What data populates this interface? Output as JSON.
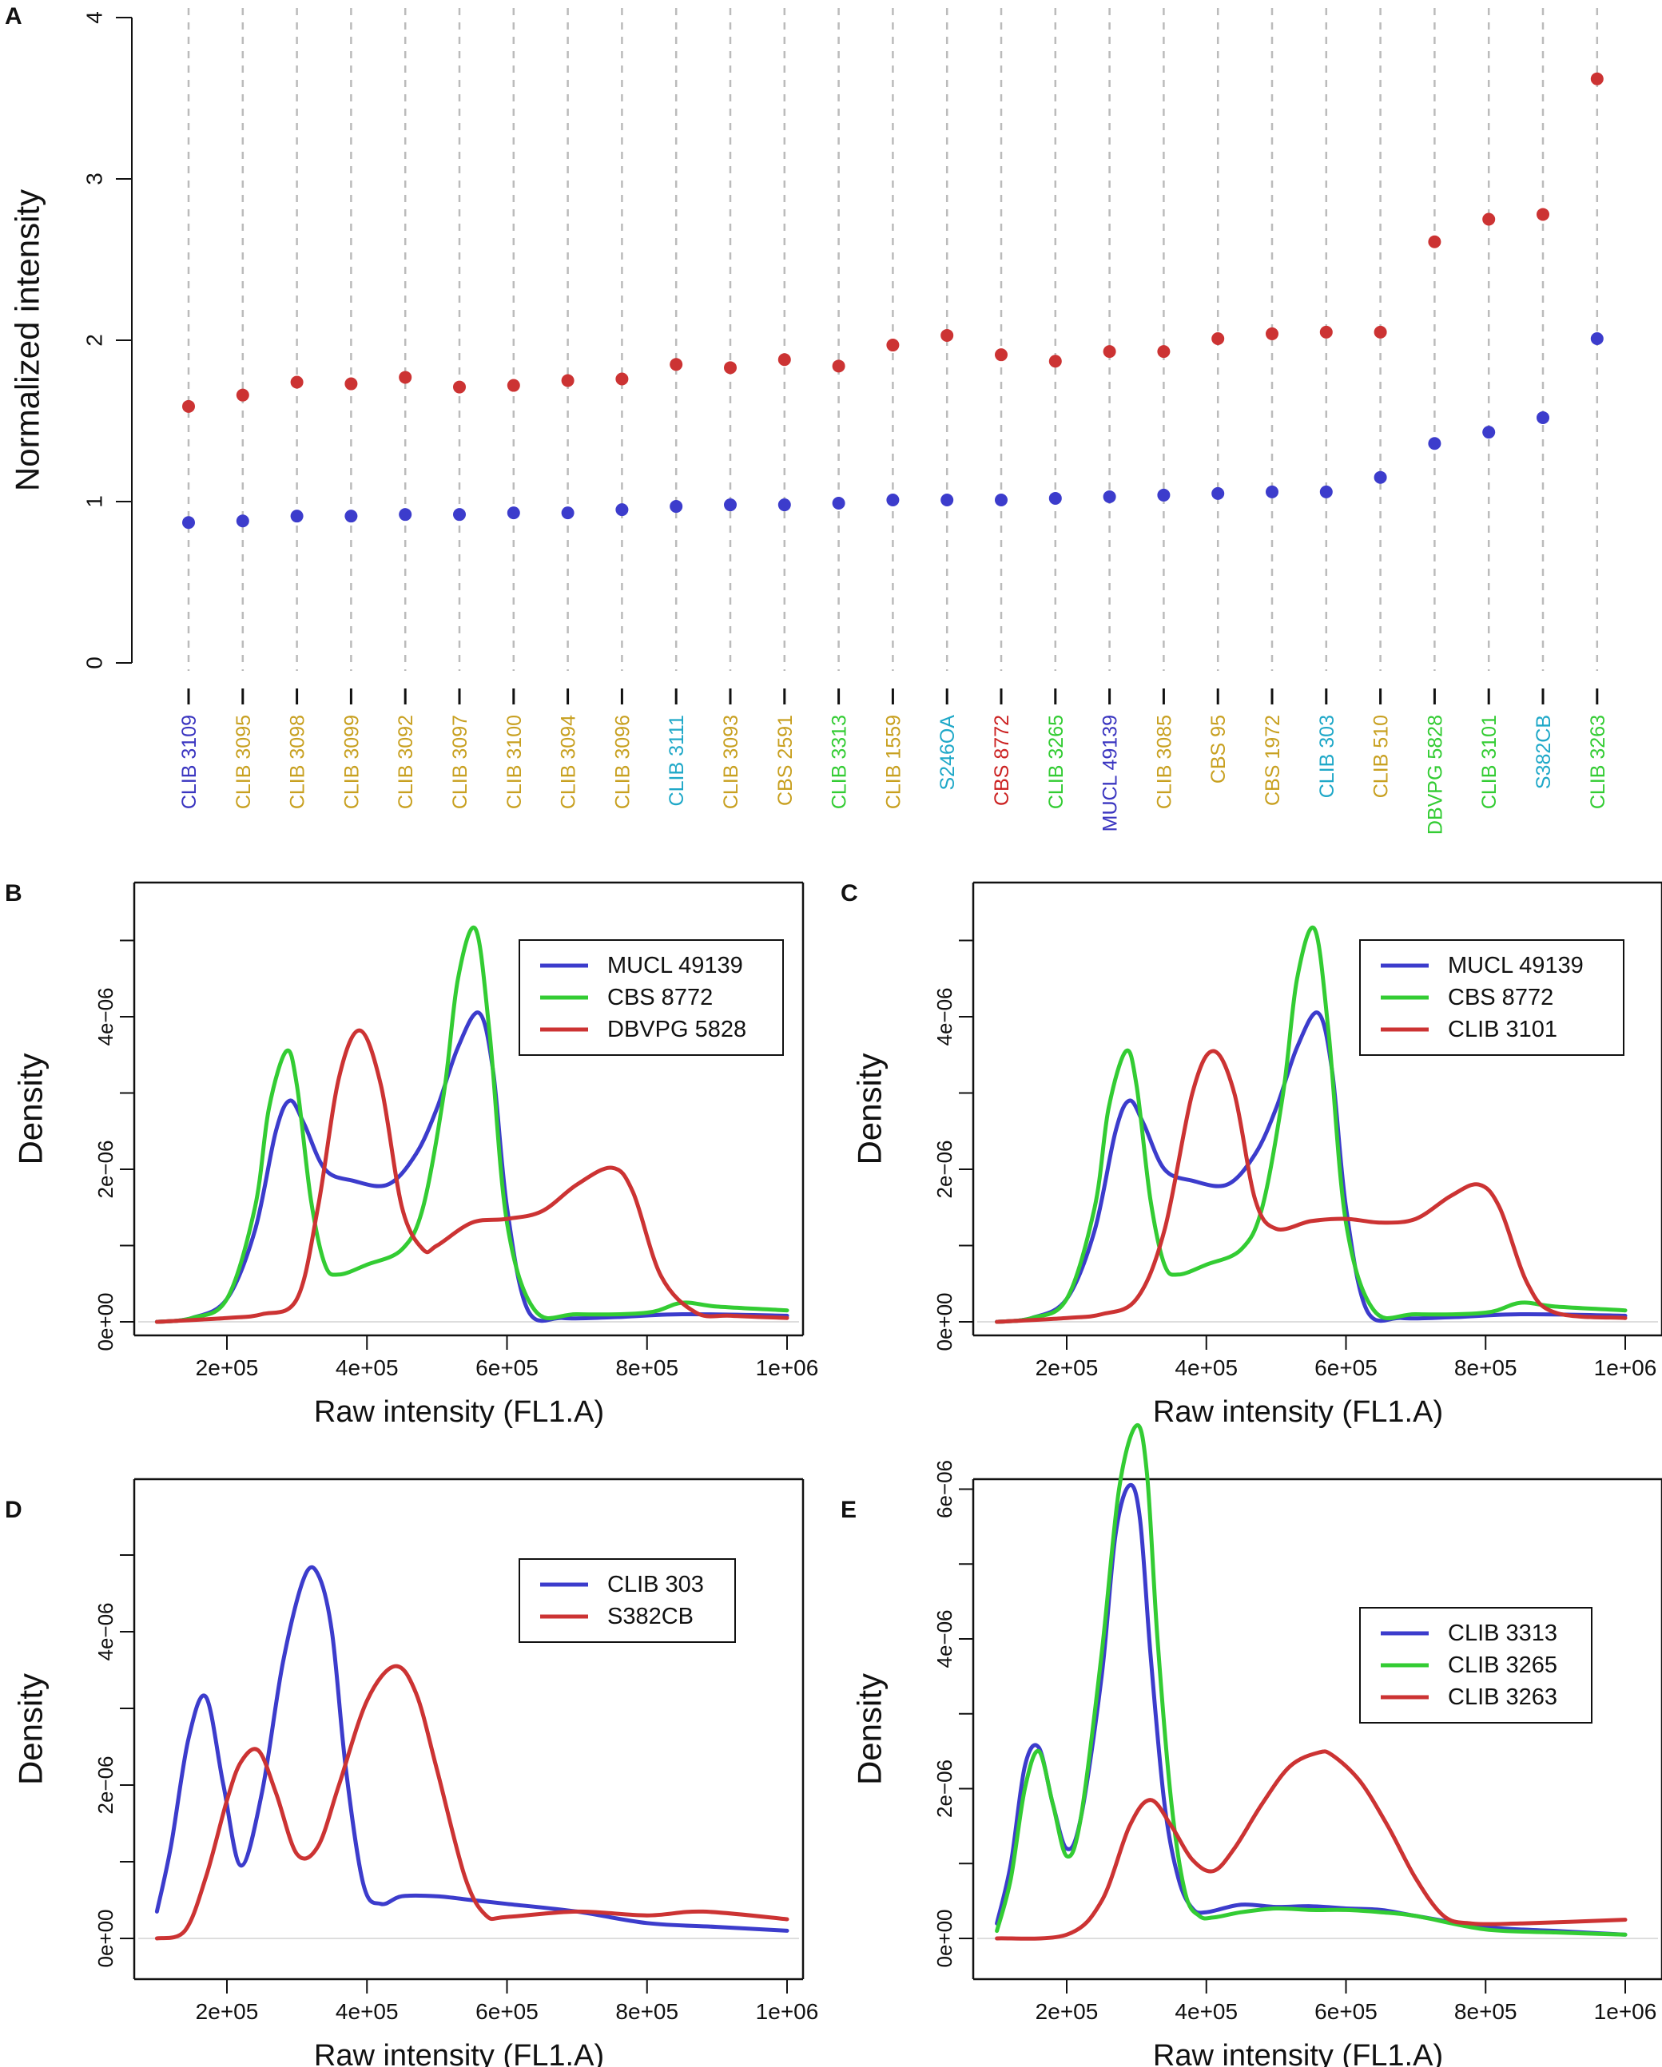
{
  "colors": {
    "red": "#cc3333",
    "blue": "#3c3ccc",
    "green": "#33cc33",
    "gold": "#c8a020",
    "cyan": "#1fa8c8",
    "purple": "#3a35c0",
    "crimson": "#cc2222",
    "grid": "#bbbbbb"
  },
  "chart_data": [
    {
      "panel": "A",
      "type": "scatter",
      "ylabel": "Normalized intensity",
      "ylim": [
        0,
        4
      ],
      "yticks": [
        "0",
        "1",
        "2",
        "3",
        "4"
      ],
      "categories": [
        "CLIB 3109",
        "CLIB 3095",
        "CLIB 3098",
        "CLIB 3099",
        "CLIB 3092",
        "CLIB 3097",
        "CLIB 3100",
        "CLIB 3094",
        "CLIB 3096",
        "CLIB 3111",
        "CLIB 3093",
        "CBS 2591",
        "CLIB 3313",
        "CLIB 1559",
        "S246OA",
        "CBS 8772",
        "CLIB 3265",
        "MUCL 49139",
        "CLIB 3085",
        "CBS 95",
        "CBS 1972",
        "CLIB 303",
        "CLIB 510",
        "DBVPG 5828",
        "CLIB 3101",
        "S382CB",
        "CLIB 3263"
      ],
      "category_colors": [
        "purple",
        "gold",
        "gold",
        "gold",
        "gold",
        "gold",
        "gold",
        "gold",
        "gold",
        "cyan",
        "gold",
        "gold",
        "green",
        "gold",
        "cyan",
        "crimson",
        "green",
        "purple",
        "gold",
        "gold",
        "gold",
        "cyan",
        "gold",
        "green",
        "green",
        "cyan",
        "green"
      ],
      "series": [
        {
          "name": "red",
          "color": "red",
          "values": [
            1.59,
            1.66,
            1.74,
            1.73,
            1.77,
            1.71,
            1.72,
            1.75,
            1.76,
            1.85,
            1.83,
            1.88,
            1.84,
            1.97,
            2.03,
            1.91,
            1.87,
            1.93,
            1.93,
            2.01,
            2.04,
            2.05,
            2.05,
            2.61,
            2.75,
            2.78,
            3.62
          ]
        },
        {
          "name": "blue",
          "color": "blue",
          "values": [
            0.87,
            0.88,
            0.91,
            0.91,
            0.92,
            0.92,
            0.93,
            0.93,
            0.95,
            0.97,
            0.98,
            0.98,
            0.99,
            1.01,
            1.01,
            1.01,
            1.02,
            1.03,
            1.04,
            1.05,
            1.06,
            1.06,
            1.15,
            1.36,
            1.43,
            1.52,
            2.01
          ]
        }
      ]
    },
    {
      "panel": "B",
      "type": "line",
      "xlabel": "Raw intensity (FL1.A)",
      "ylabel": "Density",
      "xlim": [
        100000,
        1000000
      ],
      "xticks": [
        200000,
        400000,
        600000,
        800000,
        1000000
      ],
      "xtick_labels": [
        "2e+05",
        "4e+05",
        "6e+05",
        "8e+05",
        "1e+06"
      ],
      "ylim": [
        0,
        5e-06
      ],
      "yticks": [
        0,
        2e-06,
        4e-06
      ],
      "ytick_labels": [
        "0e+00",
        "2e−06",
        "4e−06"
      ],
      "legend": [
        "MUCL 49139",
        "CBS 8772",
        "DBVPG 5828"
      ],
      "series": [
        {
          "name": "MUCL 49139",
          "color": "blue",
          "x": [
            100000,
            150000,
            200000,
            240000,
            270000,
            290000,
            310000,
            340000,
            380000,
            430000,
            470000,
            500000,
            530000,
            560000,
            580000,
            600000,
            630000,
            680000,
            750000,
            850000,
            1000000
          ],
          "y": [
            0,
            5e-08,
            3e-07,
            1.2e-06,
            2.5e-06,
            2.9e-06,
            2.6e-06,
            2e-06,
            1.85e-06,
            1.8e-06,
            2.2e-06,
            2.8e-06,
            3.6e-06,
            4.05e-06,
            3.3e-06,
            1.5e-06,
            1.5e-07,
            5e-08,
            6e-08,
            1e-07,
            8e-08
          ]
        },
        {
          "name": "CBS 8772",
          "color": "green",
          "x": [
            100000,
            150000,
            200000,
            240000,
            260000,
            285000,
            300000,
            320000,
            340000,
            360000,
            400000,
            450000,
            480000,
            510000,
            530000,
            555000,
            575000,
            600000,
            640000,
            700000,
            800000,
            850000,
            900000,
            1000000
          ],
          "y": [
            0,
            5e-08,
            3e-07,
            1.5e-06,
            2.8e-06,
            3.55e-06,
            3.1e-06,
            1.6e-06,
            7.5e-07,
            6.2e-07,
            7.5e-07,
            9.5e-07,
            1.5e-06,
            3e-06,
            4.5e-06,
            5.15e-06,
            3.8e-06,
            1.3e-06,
            1.5e-07,
            1e-07,
            1.2e-07,
            2.5e-07,
            2e-07,
            1.5e-07
          ]
        },
        {
          "name": "DBVPG 5828",
          "color": "red",
          "x": [
            100000,
            200000,
            250000,
            300000,
            330000,
            360000,
            390000,
            420000,
            450000,
            480000,
            500000,
            550000,
            600000,
            650000,
            700000,
            750000,
            780000,
            820000,
            870000,
            920000,
            1000000
          ],
          "y": [
            0,
            5e-08,
            1e-07,
            3e-07,
            1.5e-06,
            3.2e-06,
            3.82e-06,
            3.1e-06,
            1.5e-06,
            9.5e-07,
            1e-06,
            1.3e-06,
            1.35e-06,
            1.45e-06,
            1.8e-06,
            2.02e-06,
            1.7e-06,
            6e-07,
            1.2e-07,
            8e-08,
            5e-08
          ]
        }
      ]
    },
    {
      "panel": "C",
      "type": "line",
      "xlabel": "Raw intensity (FL1.A)",
      "ylabel": "Density",
      "xlim": [
        100000,
        1000000
      ],
      "xticks": [
        200000,
        400000,
        600000,
        800000,
        1000000
      ],
      "xtick_labels": [
        "2e+05",
        "4e+05",
        "6e+05",
        "8e+05",
        "1e+06"
      ],
      "ylim": [
        0,
        5e-06
      ],
      "yticks": [
        0,
        2e-06,
        4e-06
      ],
      "ytick_labels": [
        "0e+00",
        "2e−06",
        "4e−06"
      ],
      "legend": [
        "MUCL 49139",
        "CBS 8772",
        "CLIB 3101"
      ],
      "series": [
        {
          "name": "MUCL 49139",
          "color": "blue",
          "x": [
            100000,
            150000,
            200000,
            240000,
            270000,
            290000,
            310000,
            340000,
            380000,
            430000,
            470000,
            500000,
            530000,
            560000,
            580000,
            600000,
            630000,
            680000,
            750000,
            850000,
            1000000
          ],
          "y": [
            0,
            5e-08,
            3e-07,
            1.2e-06,
            2.5e-06,
            2.9e-06,
            2.6e-06,
            2e-06,
            1.85e-06,
            1.8e-06,
            2.2e-06,
            2.8e-06,
            3.6e-06,
            4.05e-06,
            3.3e-06,
            1.5e-06,
            1.5e-07,
            5e-08,
            6e-08,
            1e-07,
            8e-08
          ]
        },
        {
          "name": "CBS 8772",
          "color": "green",
          "x": [
            100000,
            150000,
            200000,
            240000,
            260000,
            285000,
            300000,
            320000,
            340000,
            360000,
            400000,
            450000,
            480000,
            510000,
            530000,
            555000,
            575000,
            600000,
            640000,
            700000,
            800000,
            850000,
            900000,
            1000000
          ],
          "y": [
            0,
            5e-08,
            3e-07,
            1.5e-06,
            2.8e-06,
            3.55e-06,
            3.1e-06,
            1.6e-06,
            7.5e-07,
            6.2e-07,
            7.5e-07,
            9.5e-07,
            1.5e-06,
            3e-06,
            4.5e-06,
            5.15e-06,
            3.8e-06,
            1.3e-06,
            1.5e-07,
            1e-07,
            1.2e-07,
            2.5e-07,
            2e-07,
            1.5e-07
          ]
        },
        {
          "name": "CLIB 3101",
          "color": "red",
          "x": [
            100000,
            200000,
            250000,
            300000,
            340000,
            380000,
            410000,
            440000,
            470000,
            500000,
            550000,
            600000,
            650000,
            700000,
            750000,
            790000,
            820000,
            860000,
            900000,
            1000000
          ],
          "y": [
            0,
            5e-08,
            1e-07,
            3e-07,
            1.2e-06,
            3e-06,
            3.55e-06,
            3e-06,
            1.6e-06,
            1.22e-06,
            1.32e-06,
            1.35e-06,
            1.3e-06,
            1.35e-06,
            1.65e-06,
            1.8e-06,
            1.5e-06,
            5e-07,
            1.2e-07,
            5e-08
          ]
        }
      ]
    },
    {
      "panel": "D",
      "type": "line",
      "xlabel": "Raw intensity (FL1.A)",
      "ylabel": "Density",
      "xlim": [
        100000,
        1000000
      ],
      "xticks": [
        200000,
        400000,
        600000,
        800000,
        1000000
      ],
      "xtick_labels": [
        "2e+05",
        "4e+05",
        "6e+05",
        "8e+05",
        "1e+06"
      ],
      "ylim": [
        0,
        5.2e-06
      ],
      "yticks": [
        0,
        2e-06,
        4e-06
      ],
      "ytick_labels": [
        "0e+00",
        "2e−06",
        "4e−06"
      ],
      "legend": [
        "CLIB 303",
        "S382CB"
      ],
      "series": [
        {
          "name": "CLIB 303",
          "color": "blue",
          "x": [
            100000,
            120000,
            145000,
            170000,
            195000,
            220000,
            250000,
            280000,
            310000,
            330000,
            350000,
            370000,
            395000,
            420000,
            450000,
            500000,
            550000,
            600000,
            700000,
            800000,
            900000,
            1000000
          ],
          "y": [
            3.5e-07,
            1.2e-06,
            2.6e-06,
            3.15e-06,
            2e-06,
            9.5e-07,
            1.9e-06,
            3.6e-06,
            4.7e-06,
            4.75e-06,
            4e-06,
            2.2e-06,
            7e-07,
            4.5e-07,
            5.5e-07,
            5.5e-07,
            5e-07,
            4.5e-07,
            3.5e-07,
            2e-07,
            1.5e-07,
            1e-07
          ]
        },
        {
          "name": "S382CB",
          "color": "red",
          "x": [
            100000,
            140000,
            170000,
            200000,
            220000,
            245000,
            270000,
            300000,
            330000,
            360000,
            400000,
            440000,
            470000,
            500000,
            540000,
            570000,
            600000,
            700000,
            800000,
            880000,
            1000000
          ],
          "y": [
            0,
            1e-07,
            8e-07,
            1.8e-06,
            2.3e-06,
            2.45e-06,
            1.9e-06,
            1.1e-06,
            1.2e-06,
            2e-06,
            3.1e-06,
            3.55e-06,
            3.2e-06,
            2.2e-06,
            8e-07,
            3e-07,
            2.8e-07,
            3.5e-07,
            3e-07,
            3.5e-07,
            2.5e-07
          ]
        }
      ]
    },
    {
      "panel": "E",
      "type": "line",
      "xlabel": "Raw intensity (FL1.A)",
      "ylabel": "Density",
      "xlim": [
        100000,
        1000000
      ],
      "xticks": [
        200000,
        400000,
        600000,
        800000,
        1000000
      ],
      "xtick_labels": [
        "2e+05",
        "4e+05",
        "6e+05",
        "8e+05",
        "1e+06"
      ],
      "ylim": [
        0,
        7e-06
      ],
      "yticks": [
        0,
        2e-06,
        4e-06,
        6e-06
      ],
      "ytick_labels": [
        "0e+00",
        "2e−06",
        "4e−06",
        "6e−06"
      ],
      "legend": [
        "CLIB 3313",
        "CLIB 3265",
        "CLIB 3263"
      ],
      "series": [
        {
          "name": "CLIB 3313",
          "color": "blue",
          "x": [
            100000,
            120000,
            140000,
            160000,
            180000,
            200000,
            220000,
            250000,
            270000,
            290000,
            305000,
            320000,
            340000,
            360000,
            380000,
            400000,
            450000,
            500000,
            550000,
            600000,
            650000,
            700000,
            800000,
            900000,
            1000000
          ],
          "y": [
            2e-07,
            1e-06,
            2.3e-06,
            2.55e-06,
            1.8e-06,
            1.2e-06,
            1.6e-06,
            3.5e-06,
            5.4e-06,
            6.05e-06,
            5.6e-06,
            3.8e-06,
            1.8e-06,
            8e-07,
            4e-07,
            3.5e-07,
            4.5e-07,
            4.2e-07,
            4.3e-07,
            4e-07,
            3.8e-07,
            3e-07,
            1.5e-07,
            1e-07,
            5e-08
          ]
        },
        {
          "name": "CLIB 3265",
          "color": "green",
          "x": [
            100000,
            120000,
            140000,
            160000,
            180000,
            200000,
            220000,
            250000,
            275000,
            300000,
            315000,
            330000,
            350000,
            370000,
            390000,
            410000,
            450000,
            500000,
            550000,
            600000,
            650000,
            700000,
            800000,
            900000,
            1000000
          ],
          "y": [
            1e-07,
            8e-07,
            2e-06,
            2.5e-06,
            1.8e-06,
            1.1e-06,
            1.6e-06,
            3.8e-06,
            6e-06,
            6.85e-06,
            6.2e-06,
            4e-06,
            1.8e-06,
            6e-07,
            3e-07,
            2.8e-07,
            3.5e-07,
            4e-07,
            3.8e-07,
            3.8e-07,
            3.5e-07,
            3e-07,
            1.2e-07,
            8e-08,
            5e-08
          ]
        },
        {
          "name": "CLIB 3263",
          "color": "red",
          "x": [
            100000,
            200000,
            250000,
            290000,
            320000,
            350000,
            380000,
            410000,
            440000,
            480000,
            520000,
            560000,
            580000,
            620000,
            660000,
            700000,
            740000,
            780000,
            850000,
            1000000
          ],
          "y": [
            0,
            5e-08,
            5e-07,
            1.5e-06,
            1.85e-06,
            1.5e-06,
            1.05e-06,
            9e-07,
            1.2e-06,
            1.8e-06,
            2.3e-06,
            2.48e-06,
            2.45e-06,
            2.1e-06,
            1.5e-06,
            8e-07,
            3e-07,
            2e-07,
            2e-07,
            2.5e-07
          ]
        }
      ]
    }
  ],
  "panels": {
    "A": {
      "label": "A"
    },
    "B": {
      "label": "B"
    },
    "C": {
      "label": "C"
    },
    "D": {
      "label": "D"
    },
    "E": {
      "label": "E"
    }
  }
}
